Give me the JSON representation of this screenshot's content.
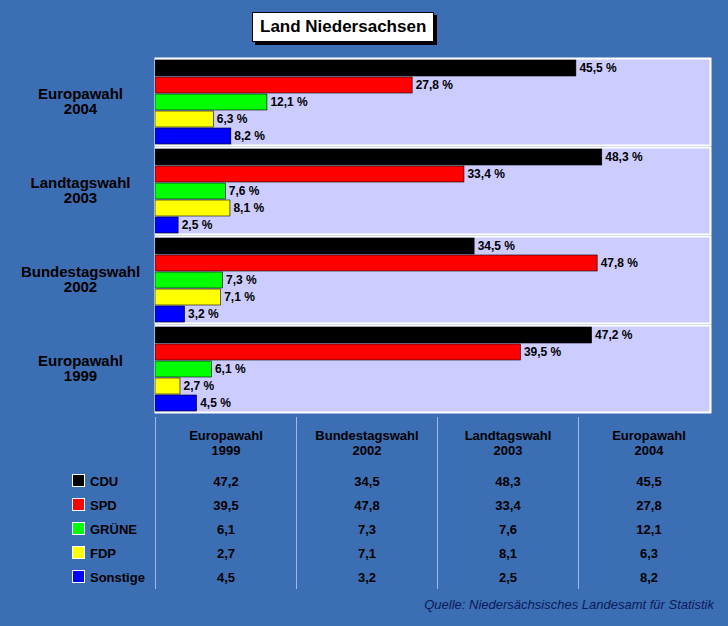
{
  "chart_data": {
    "type": "bar",
    "title": "Land Niedersachsen",
    "orientation": "horizontal",
    "data_labels": true,
    "tick_labels": "y",
    "grid": false,
    "categories": [
      "Europawahl 1999",
      "Bundestagswahl 2002",
      "Landtagswahl 2003",
      "Europawahl 2004"
    ],
    "xlim": [
      0,
      60
    ],
    "xticks": [],
    "series": [
      {
        "name": "CDU",
        "color": "#000000",
        "values": [
          47.2,
          34.5,
          48.3,
          45.5
        ],
        "value_labels": [
          "47,2 %",
          "34,5 %",
          "48,3 %",
          "45,5 %"
        ]
      },
      {
        "name": "SPD",
        "color": "#ff0000",
        "values": [
          39.5,
          47.8,
          33.4,
          27.8
        ],
        "value_labels": [
          "39,5 %",
          "47,8 %",
          "33,4 %",
          "27,8 %"
        ]
      },
      {
        "name": "GRÜNE",
        "color": "#00ff00",
        "values": [
          6.1,
          7.3,
          7.6,
          12.1
        ],
        "value_labels": [
          "6,1 %",
          "7,3 %",
          "7,6 %",
          "12,1 %"
        ]
      },
      {
        "name": "FDP",
        "color": "#ffff00",
        "values": [
          2.7,
          7.1,
          8.1,
          6.3
        ],
        "value_labels": [
          "2,7 %",
          "7,1 %",
          "8,1 %",
          "6,3 %"
        ]
      },
      {
        "name": "Sonstige",
        "color": "#0000ff",
        "values": [
          4.5,
          3.2,
          2.5,
          8.2
        ],
        "value_labels": [
          "4,5 %",
          "3,2 %",
          "2,5 %",
          "8,2 %"
        ]
      }
    ]
  },
  "table": {
    "cells": [
      [
        "47,2",
        "34,5",
        "48,3",
        "45,5"
      ],
      [
        "39,5",
        "47,8",
        "33,4",
        "27,8"
      ],
      [
        "6,1",
        "7,3",
        "7,6",
        "12,1"
      ],
      [
        "2,7",
        "7,1",
        "8,1",
        "6,3"
      ],
      [
        "4,5",
        "3,2",
        "2,5",
        "8,2"
      ]
    ]
  },
  "caption": "Quelle: Niedersächsisches Landesamt für Statistik"
}
